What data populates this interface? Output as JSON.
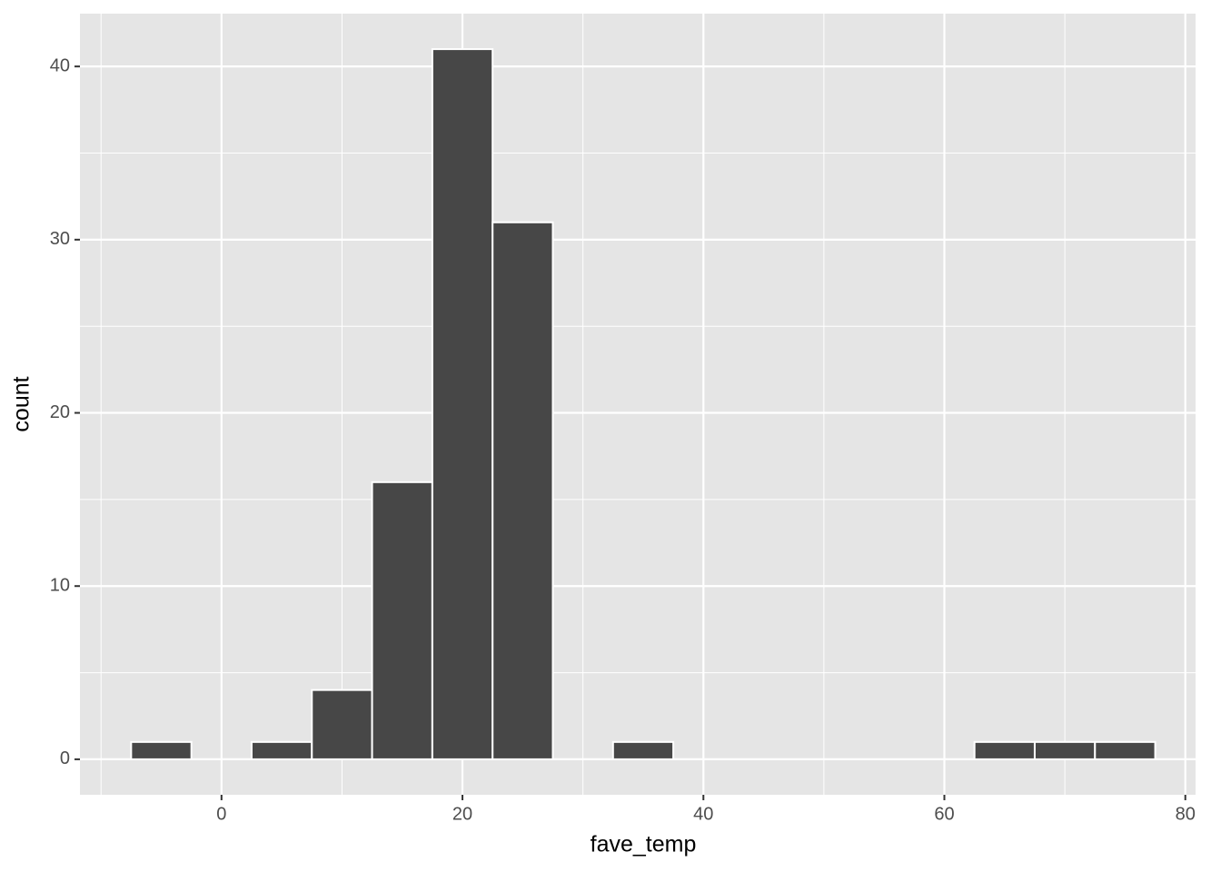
{
  "chart_data": {
    "type": "histogram",
    "x_label": "fave_temp",
    "y_label": "count",
    "bins": [
      -7.5,
      -2.5,
      2.5,
      7.5,
      12.5,
      17.5,
      22.5,
      27.5,
      32.5,
      37.5,
      42.5,
      47.5,
      52.5,
      57.5,
      62.5,
      67.5,
      72.5,
      77.5
    ],
    "values": [
      1,
      0,
      1,
      4,
      16,
      41,
      31,
      0,
      1,
      0,
      0,
      0,
      0,
      0,
      1,
      1,
      1
    ],
    "color": "#474747",
    "edge_color": "#ffffff",
    "xlim": [
      -11.75,
      80.85
    ],
    "ylim": [
      -2.05,
      43.05
    ],
    "xticks": [
      0,
      20,
      40,
      60,
      80
    ],
    "yticks": [
      0,
      10,
      20,
      30,
      40
    ],
    "minor_xticks": [
      -10,
      10,
      30,
      50,
      70
    ],
    "minor_yticks": [
      5,
      15,
      25,
      35
    ],
    "grid": true,
    "panel_color": "#e5e5e5"
  }
}
